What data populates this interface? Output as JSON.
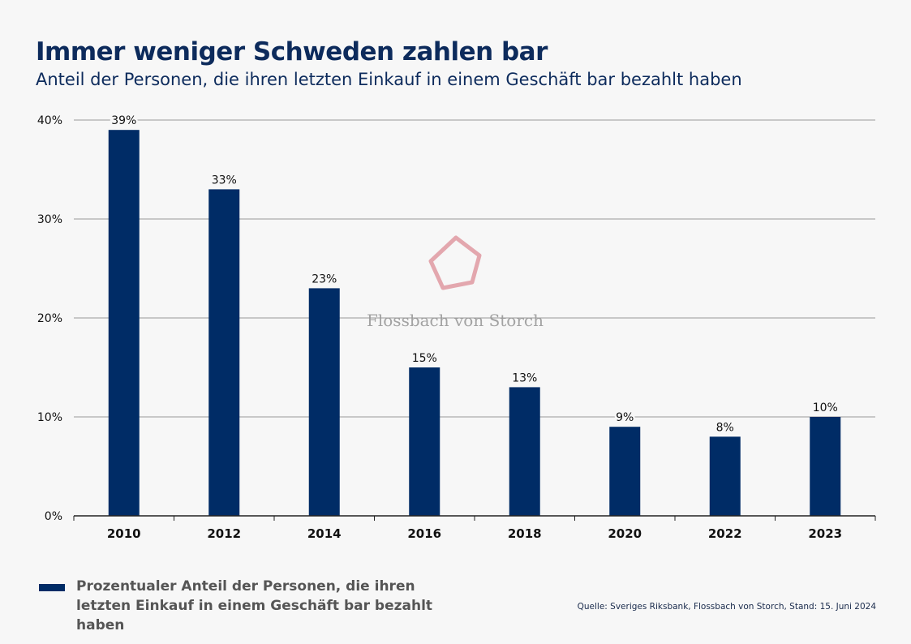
{
  "title": "Immer weniger Schweden zahlen bar",
  "subtitle": "Anteil der Personen, die ihren letzten Einkauf in einem Geschäft bar bezahlt haben",
  "watermark": "Flossbach von Storch",
  "source": "Quelle: Sveriges Riksbank, Flossbach von Storch, Stand: 15. Juni 2024",
  "colors": {
    "bar": "#002c66",
    "title": "#0d2b5c",
    "grid": "#9a9a9a",
    "watermark_logo": "#e3a7ae"
  },
  "chart_data": {
    "type": "bar",
    "categories": [
      "2010",
      "2012",
      "2014",
      "2016",
      "2018",
      "2020",
      "2022",
      "2023"
    ],
    "series": [
      {
        "name": "Prozentualer Anteil der Personen, die ihren letzten Einkauf in einem Geschäft bar bezahlt haben",
        "values": [
          39,
          33,
          23,
          15,
          13,
          9,
          8,
          10
        ]
      }
    ],
    "data_labels": [
      "39%",
      "33%",
      "23%",
      "15%",
      "13%",
      "9%",
      "8%",
      "10%"
    ],
    "yticks": [
      0,
      10,
      20,
      30,
      40
    ],
    "ytick_labels": [
      "0%",
      "10%",
      "20%",
      "30%",
      "40%"
    ],
    "ylim": [
      0,
      40
    ],
    "grid": true,
    "legend_position": "bottom-left"
  }
}
